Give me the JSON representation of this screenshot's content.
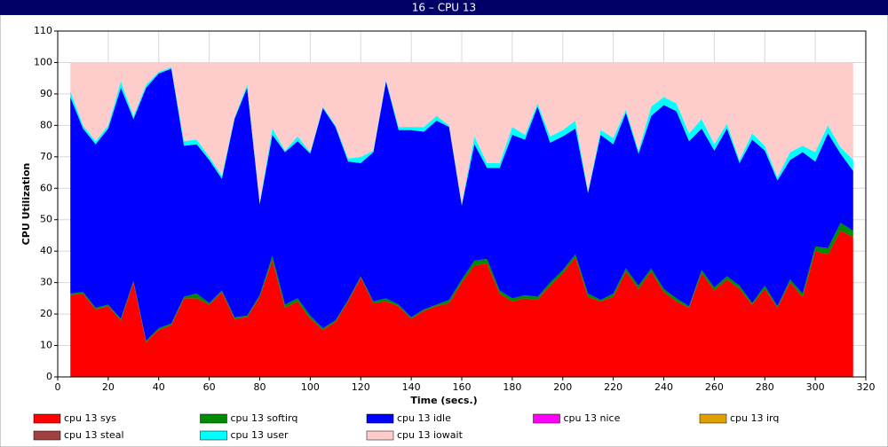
{
  "chart_data": {
    "type": "stacked_area",
    "title": "16 – CPU 13",
    "xlabel": "Time (secs.)",
    "ylabel": "CPU Utilization",
    "xlim": [
      0,
      320
    ],
    "xticks": [
      0,
      20,
      40,
      60,
      80,
      100,
      120,
      140,
      160,
      180,
      200,
      220,
      240,
      260,
      280,
      300,
      320
    ],
    "ylim": [
      0,
      110
    ],
    "yticks": [
      0,
      10,
      20,
      30,
      40,
      50,
      60,
      70,
      80,
      90,
      100,
      110
    ],
    "grid": true,
    "legend": "bottom",
    "x": [
      5,
      10,
      15,
      20,
      25,
      30,
      35,
      40,
      45,
      50,
      55,
      60,
      65,
      70,
      75,
      80,
      85,
      90,
      95,
      100,
      105,
      110,
      115,
      120,
      125,
      130,
      135,
      140,
      145,
      150,
      155,
      160,
      165,
      170,
      175,
      180,
      185,
      190,
      195,
      200,
      205,
      210,
      215,
      220,
      225,
      230,
      235,
      240,
      245,
      250,
      255,
      260,
      265,
      270,
      275,
      280,
      285,
      290,
      295,
      300,
      305,
      310,
      315
    ],
    "series": [
      {
        "name": "cpu 13 sys",
        "color": "#ff0000",
        "values": [
          26,
          26.5,
          21.5,
          22.5,
          18,
          30,
          11,
          15,
          16.5,
          25,
          25,
          23,
          27,
          18.5,
          19,
          25.5,
          37,
          22,
          24,
          18.5,
          15,
          17.5,
          24,
          31.5,
          23.5,
          24,
          22.5,
          18.5,
          21,
          22.5,
          23.5,
          30,
          35.5,
          36,
          26.5,
          24,
          25,
          24.5,
          29,
          33,
          38,
          25.5,
          24,
          25.5,
          33.5,
          28,
          33.5,
          27,
          24,
          22,
          33,
          27.5,
          31,
          28,
          23,
          28,
          22,
          30,
          25.5,
          40,
          39,
          46.5,
          44.5
        ]
      },
      {
        "name": "cpu 13 softirq",
        "color": "#008c00",
        "values": [
          0.5,
          0.5,
          0.5,
          0.5,
          0.5,
          0.5,
          0.5,
          0.5,
          0.5,
          0.5,
          1.5,
          0.5,
          0.5,
          0.5,
          0.5,
          0.5,
          1.5,
          1,
          1,
          1,
          0.5,
          0.5,
          0.5,
          0.5,
          0.5,
          1,
          0.5,
          0.5,
          0.5,
          0.5,
          1,
          1,
          1.5,
          1.5,
          1,
          1,
          1,
          1,
          1,
          1,
          1,
          1,
          0.5,
          1,
          1,
          1,
          1,
          1,
          1,
          0.5,
          1,
          1,
          1,
          1,
          0.5,
          1,
          0.5,
          1,
          1,
          1.5,
          2,
          2.5,
          2
        ]
      },
      {
        "name": "cpu 13 idle",
        "color": "#0000ff",
        "values": [
          62.5,
          52,
          52,
          56,
          73.5,
          51.5,
          80.5,
          81,
          81,
          48,
          47.5,
          45.5,
          35.5,
          63,
          72.5,
          29,
          38.5,
          48.5,
          50,
          51.5,
          70,
          61.5,
          44,
          36,
          47.5,
          69,
          55.5,
          59.5,
          56.5,
          58.5,
          55,
          23.5,
          37,
          29,
          39,
          52,
          49.5,
          60.5,
          44.5,
          42.5,
          40,
          32,
          52.5,
          47.5,
          49.5,
          42,
          48.5,
          58.5,
          59.5,
          52.5,
          45,
          43.5,
          47,
          39,
          52,
          43,
          40,
          38,
          45,
          27,
          36.5,
          22,
          19
        ]
      },
      {
        "name": "cpu 13 nice",
        "color": "#ff00ff",
        "values": [
          0,
          0,
          0,
          0,
          0,
          0,
          0,
          0,
          0,
          0,
          0,
          0,
          0,
          0,
          0,
          0,
          0,
          0,
          0,
          0,
          0,
          0,
          0,
          0,
          0,
          0,
          0,
          0,
          0,
          0,
          0,
          0,
          0,
          0,
          0,
          0,
          0,
          0,
          0,
          0,
          0,
          0,
          0,
          0,
          0,
          0,
          0,
          0,
          0,
          0,
          0,
          0,
          0,
          0,
          0,
          0,
          0,
          0,
          0,
          0,
          0,
          0,
          0
        ]
      },
      {
        "name": "cpu 13 irq",
        "color": "#e0a000",
        "values": [
          0,
          0,
          0,
          0,
          0,
          0,
          0,
          0,
          0,
          0,
          0,
          0,
          0,
          0,
          0,
          0,
          0,
          0,
          0,
          0,
          0,
          0,
          0,
          0,
          0,
          0,
          0,
          0,
          0,
          0,
          0,
          0,
          0,
          0,
          0,
          0,
          0,
          0,
          0,
          0,
          0,
          0,
          0,
          0,
          0,
          0,
          0,
          0,
          0,
          0,
          0,
          0,
          0,
          0,
          0,
          0,
          0,
          0,
          0,
          0,
          0,
          0,
          0
        ]
      },
      {
        "name": "cpu 13 steal",
        "color": "#a04040",
        "values": [
          0,
          0,
          0,
          0,
          0,
          0,
          0,
          0,
          0,
          0,
          0,
          0,
          0,
          0,
          0,
          0,
          0,
          0,
          0,
          0,
          0,
          0,
          0,
          0,
          0,
          0,
          0,
          0,
          0,
          0,
          0,
          0,
          0,
          0,
          0,
          0,
          0,
          0,
          0,
          0,
          0,
          0,
          0,
          0,
          0,
          0,
          0,
          0,
          0,
          0,
          0,
          0,
          0,
          0,
          0,
          0,
          0,
          0,
          0,
          0,
          0,
          0,
          0
        ]
      },
      {
        "name": "cpu 13 user",
        "color": "#00ffff",
        "values": [
          2,
          1,
          1,
          1,
          2,
          1,
          1,
          0.5,
          0.5,
          1.5,
          1.5,
          1,
          1,
          0.5,
          1,
          0.5,
          2,
          0.5,
          1.5,
          0.5,
          0.5,
          0.5,
          1,
          2,
          0.5,
          0.5,
          1,
          1,
          1.5,
          1.5,
          0.5,
          0.5,
          2.5,
          1.5,
          1.5,
          2.5,
          1.5,
          1,
          2,
          2,
          2.5,
          0.5,
          1.5,
          2,
          1,
          1,
          3,
          2.5,
          2.5,
          2.5,
          3,
          2,
          1.5,
          1,
          2,
          1.5,
          1,
          2.5,
          2,
          3,
          2.5,
          2,
          3.5
        ]
      },
      {
        "name": "cpu 13 iowait",
        "color": "#ffcccc",
        "values": [
          9,
          20,
          25,
          20,
          6,
          17,
          7,
          3,
          1.5,
          25,
          24.5,
          30,
          36,
          17.5,
          7,
          44.5,
          21,
          28,
          23.5,
          28.5,
          14,
          20,
          30.5,
          30,
          28,
          5.5,
          20.5,
          20.5,
          20.5,
          17,
          20,
          45,
          23.5,
          32,
          32,
          20.5,
          23,
          13,
          23.5,
          21.5,
          18.5,
          41,
          21.5,
          24,
          15,
          28,
          14,
          11,
          13,
          22.5,
          18,
          26,
          19.5,
          31,
          22.5,
          26.5,
          36.5,
          28.5,
          26.5,
          28.5,
          20,
          27,
          31
        ]
      }
    ]
  }
}
